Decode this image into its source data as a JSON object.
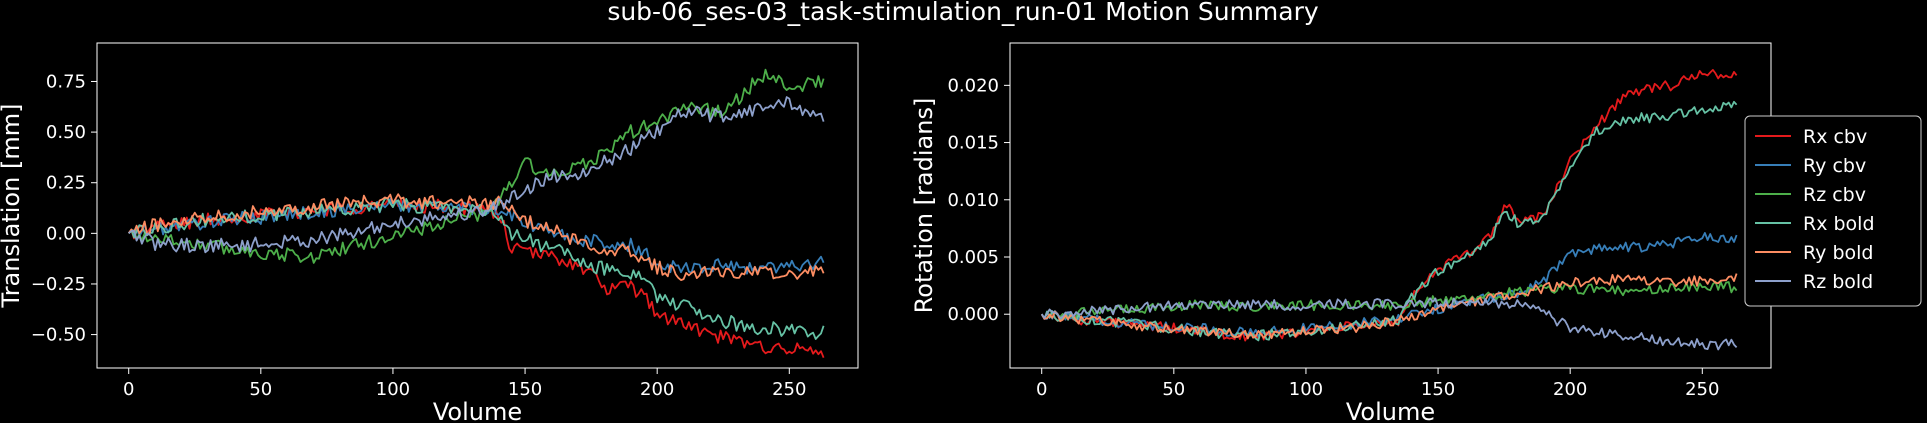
{
  "figure": {
    "title": "sub-06_ses-03_task-stimulation_run-01 Motion Summary"
  },
  "chart_data": [
    {
      "type": "line",
      "xlabel": "Volume",
      "ylabel": "Translation [mm]",
      "xlim": [
        -12,
        276
      ],
      "ylim": [
        -0.665,
        0.94
      ],
      "xticks": [
        0,
        50,
        100,
        150,
        200,
        250
      ],
      "xtick_labels": [
        "0",
        "50",
        "100",
        "150",
        "200",
        "250"
      ],
      "yticks": [
        -0.5,
        -0.25,
        0.0,
        0.25,
        0.5,
        0.75
      ],
      "ytick_labels": [
        "−0.50",
        "−0.25",
        "0.00",
        "0.25",
        "0.50",
        "0.75"
      ],
      "grid": false,
      "series": [
        {
          "name": "Rx cbv",
          "color": "#e41a1c",
          "points": [
            [
              0,
              0.0
            ],
            [
              10,
              0.03
            ],
            [
              25,
              0.06
            ],
            [
              50,
              0.09
            ],
            [
              75,
              0.12
            ],
            [
              100,
              0.14
            ],
            [
              125,
              0.13
            ],
            [
              140,
              0.1
            ],
            [
              145,
              -0.08
            ],
            [
              155,
              -0.1
            ],
            [
              165,
              -0.13
            ],
            [
              175,
              -0.2
            ],
            [
              180,
              -0.27
            ],
            [
              190,
              -0.27
            ],
            [
              195,
              -0.3
            ],
            [
              200,
              -0.4
            ],
            [
              210,
              -0.45
            ],
            [
              220,
              -0.5
            ],
            [
              235,
              -0.55
            ],
            [
              250,
              -0.57
            ],
            [
              263,
              -0.59
            ]
          ]
        },
        {
          "name": "Ry cbv",
          "color": "#377eb8",
          "points": [
            [
              0,
              0.0
            ],
            [
              10,
              0.02
            ],
            [
              25,
              0.05
            ],
            [
              50,
              0.08
            ],
            [
              75,
              0.11
            ],
            [
              100,
              0.14
            ],
            [
              125,
              0.13
            ],
            [
              140,
              0.12
            ],
            [
              150,
              0.05
            ],
            [
              160,
              0.0
            ],
            [
              170,
              -0.03
            ],
            [
              180,
              -0.05
            ],
            [
              190,
              -0.06
            ],
            [
              195,
              -0.1
            ],
            [
              200,
              -0.15
            ],
            [
              210,
              -0.17
            ],
            [
              225,
              -0.16
            ],
            [
              240,
              -0.17
            ],
            [
              255,
              -0.15
            ],
            [
              263,
              -0.14
            ]
          ]
        },
        {
          "name": "Rz cbv",
          "color": "#4daf4a",
          "points": [
            [
              0,
              0.0
            ],
            [
              10,
              -0.02
            ],
            [
              25,
              -0.05
            ],
            [
              40,
              -0.08
            ],
            [
              55,
              -0.1
            ],
            [
              68,
              -0.12
            ],
            [
              80,
              -0.08
            ],
            [
              95,
              -0.03
            ],
            [
              110,
              0.02
            ],
            [
              125,
              0.07
            ],
            [
              135,
              0.1
            ],
            [
              142,
              0.2
            ],
            [
              150,
              0.35
            ],
            [
              160,
              0.28
            ],
            [
              170,
              0.32
            ],
            [
              180,
              0.4
            ],
            [
              190,
              0.5
            ],
            [
              200,
              0.55
            ],
            [
              210,
              0.62
            ],
            [
              225,
              0.6
            ],
            [
              240,
              0.78
            ],
            [
              250,
              0.72
            ],
            [
              263,
              0.75
            ]
          ]
        },
        {
          "name": "Rx bold",
          "color": "#66c2a5",
          "points": [
            [
              0,
              0.0
            ],
            [
              10,
              0.03
            ],
            [
              25,
              0.06
            ],
            [
              50,
              0.09
            ],
            [
              75,
              0.12
            ],
            [
              100,
              0.14
            ],
            [
              125,
              0.13
            ],
            [
              140,
              0.1
            ],
            [
              145,
              0.0
            ],
            [
              155,
              -0.05
            ],
            [
              165,
              -0.1
            ],
            [
              175,
              -0.17
            ],
            [
              185,
              -0.18
            ],
            [
              195,
              -0.2
            ],
            [
              200,
              -0.32
            ],
            [
              210,
              -0.36
            ],
            [
              220,
              -0.42
            ],
            [
              235,
              -0.46
            ],
            [
              250,
              -0.48
            ],
            [
              263,
              -0.49
            ]
          ]
        },
        {
          "name": "Ry bold",
          "color": "#fc8d62",
          "points": [
            [
              0,
              0.0
            ],
            [
              10,
              0.04
            ],
            [
              25,
              0.08
            ],
            [
              50,
              0.11
            ],
            [
              75,
              0.14
            ],
            [
              100,
              0.16
            ],
            [
              125,
              0.15
            ],
            [
              140,
              0.15
            ],
            [
              150,
              0.06
            ],
            [
              160,
              0.02
            ],
            [
              170,
              -0.04
            ],
            [
              180,
              -0.08
            ],
            [
              190,
              -0.08
            ],
            [
              200,
              -0.17
            ],
            [
              210,
              -0.2
            ],
            [
              225,
              -0.19
            ],
            [
              240,
              -0.2
            ],
            [
              255,
              -0.19
            ],
            [
              263,
              -0.18
            ]
          ]
        },
        {
          "name": "Rz bold",
          "color": "#8da0cb",
          "points": [
            [
              0,
              0.0
            ],
            [
              10,
              -0.05
            ],
            [
              25,
              -0.06
            ],
            [
              40,
              -0.06
            ],
            [
              55,
              -0.05
            ],
            [
              70,
              -0.03
            ],
            [
              85,
              0.0
            ],
            [
              100,
              0.05
            ],
            [
              115,
              0.08
            ],
            [
              130,
              0.1
            ],
            [
              142,
              0.15
            ],
            [
              150,
              0.22
            ],
            [
              160,
              0.28
            ],
            [
              170,
              0.3
            ],
            [
              180,
              0.35
            ],
            [
              190,
              0.42
            ],
            [
              200,
              0.5
            ],
            [
              210,
              0.6
            ],
            [
              225,
              0.58
            ],
            [
              240,
              0.62
            ],
            [
              250,
              0.65
            ],
            [
              263,
              0.55
            ]
          ]
        }
      ]
    },
    {
      "type": "line",
      "xlabel": "Volume",
      "ylabel": "Rotation [radians]",
      "xlim": [
        -12,
        276
      ],
      "ylim": [
        -0.0047,
        0.0237
      ],
      "xticks": [
        0,
        50,
        100,
        150,
        200,
        250
      ],
      "xtick_labels": [
        "0",
        "50",
        "100",
        "150",
        "200",
        "250"
      ],
      "yticks": [
        0.0,
        0.005,
        0.01,
        0.015,
        0.02
      ],
      "ytick_labels": [
        "0.000",
        "0.005",
        "0.010",
        "0.015",
        "0.020"
      ],
      "grid": false,
      "legend_position": "outside-right",
      "series": [
        {
          "name": "Rx cbv",
          "color": "#e41a1c",
          "points": [
            [
              0,
              0.0
            ],
            [
              20,
              -0.0006
            ],
            [
              40,
              -0.001
            ],
            [
              60,
              -0.0015
            ],
            [
              80,
              -0.002
            ],
            [
              100,
              -0.0015
            ],
            [
              120,
              -0.001
            ],
            [
              135,
              -0.0008
            ],
            [
              140,
              0.0015
            ],
            [
              150,
              0.004
            ],
            [
              160,
              0.005
            ],
            [
              170,
              0.007
            ],
            [
              176,
              0.0097
            ],
            [
              180,
              0.0082
            ],
            [
              190,
              0.0085
            ],
            [
              200,
              0.0135
            ],
            [
              210,
              0.0165
            ],
            [
              220,
              0.019
            ],
            [
              230,
              0.0198
            ],
            [
              240,
              0.02
            ],
            [
              250,
              0.0212
            ],
            [
              263,
              0.0207
            ]
          ]
        },
        {
          "name": "Ry cbv",
          "color": "#377eb8",
          "points": [
            [
              0,
              0.0
            ],
            [
              20,
              -0.0005
            ],
            [
              40,
              -0.0009
            ],
            [
              60,
              -0.0012
            ],
            [
              80,
              -0.0017
            ],
            [
              100,
              -0.0012
            ],
            [
              120,
              -0.0008
            ],
            [
              135,
              -0.0004
            ],
            [
              150,
              0.0005
            ],
            [
              165,
              0.0012
            ],
            [
              180,
              0.0018
            ],
            [
              190,
              0.003
            ],
            [
              200,
              0.0053
            ],
            [
              210,
              0.0057
            ],
            [
              220,
              0.0058
            ],
            [
              235,
              0.006
            ],
            [
              250,
              0.0068
            ],
            [
              263,
              0.0065
            ]
          ]
        },
        {
          "name": "Rz cbv",
          "color": "#4daf4a",
          "points": [
            [
              0,
              0.0
            ],
            [
              20,
              0.0002
            ],
            [
              40,
              0.0005
            ],
            [
              60,
              0.0008
            ],
            [
              80,
              0.0007
            ],
            [
              100,
              0.0008
            ],
            [
              120,
              0.0008
            ],
            [
              135,
              0.0008
            ],
            [
              150,
              0.0012
            ],
            [
              165,
              0.0015
            ],
            [
              180,
              0.002
            ],
            [
              195,
              0.0022
            ],
            [
              210,
              0.0022
            ],
            [
              225,
              0.002
            ],
            [
              240,
              0.0023
            ],
            [
              255,
              0.0025
            ],
            [
              263,
              0.0023
            ]
          ]
        },
        {
          "name": "Rx bold",
          "color": "#66c2a5",
          "points": [
            [
              0,
              0.0
            ],
            [
              20,
              -0.0005
            ],
            [
              40,
              -0.001
            ],
            [
              60,
              -0.0015
            ],
            [
              80,
              -0.0019
            ],
            [
              100,
              -0.0015
            ],
            [
              120,
              -0.001
            ],
            [
              135,
              -0.0005
            ],
            [
              140,
              0.0015
            ],
            [
              150,
              0.0038
            ],
            [
              160,
              0.0048
            ],
            [
              170,
              0.0068
            ],
            [
              176,
              0.009
            ],
            [
              180,
              0.008
            ],
            [
              190,
              0.0085
            ],
            [
              200,
              0.013
            ],
            [
              210,
              0.016
            ],
            [
              220,
              0.017
            ],
            [
              230,
              0.0172
            ],
            [
              240,
              0.0175
            ],
            [
              250,
              0.018
            ],
            [
              263,
              0.0183
            ]
          ]
        },
        {
          "name": "Ry bold",
          "color": "#fc8d62",
          "points": [
            [
              0,
              0.0
            ],
            [
              20,
              -0.0006
            ],
            [
              40,
              -0.0011
            ],
            [
              60,
              -0.0015
            ],
            [
              80,
              -0.0019
            ],
            [
              100,
              -0.0015
            ],
            [
              120,
              -0.0011
            ],
            [
              135,
              -0.0006
            ],
            [
              150,
              0.0005
            ],
            [
              165,
              0.0012
            ],
            [
              180,
              0.0018
            ],
            [
              195,
              0.0025
            ],
            [
              210,
              0.003
            ],
            [
              225,
              0.003
            ],
            [
              240,
              0.0028
            ],
            [
              255,
              0.003
            ],
            [
              263,
              0.0033
            ]
          ]
        },
        {
          "name": "Rz bold",
          "color": "#8da0cb",
          "points": [
            [
              0,
              0.0
            ],
            [
              20,
              0.0003
            ],
            [
              40,
              0.0006
            ],
            [
              60,
              0.0009
            ],
            [
              80,
              0.0008
            ],
            [
              100,
              0.0008
            ],
            [
              120,
              0.0009
            ],
            [
              135,
              0.0009
            ],
            [
              150,
              0.001
            ],
            [
              165,
              0.001
            ],
            [
              180,
              0.0008
            ],
            [
              190,
              0.0001
            ],
            [
              200,
              -0.0012
            ],
            [
              210,
              -0.0015
            ],
            [
              225,
              -0.002
            ],
            [
              240,
              -0.0024
            ],
            [
              255,
              -0.0028
            ],
            [
              263,
              -0.0025
            ]
          ]
        }
      ]
    }
  ]
}
